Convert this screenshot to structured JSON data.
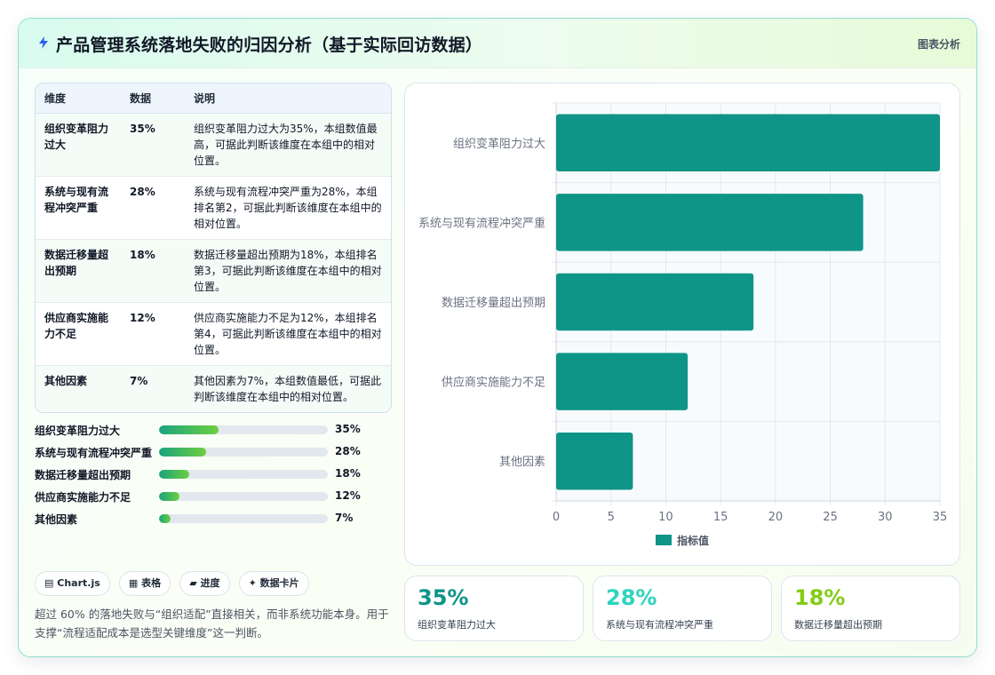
{
  "header": {
    "title": "产品管理系统落地失败的归因分析（基于实际回访数据）",
    "tag": "图表分析",
    "icon": "lightning-icon"
  },
  "table": {
    "columns": [
      "维度",
      "数据",
      "说明"
    ],
    "rows": [
      {
        "name": "组织变革阻力过大",
        "value": "35%",
        "desc": "组织变革阻力过大为35%，本组数值最高，可据此判断该维度在本组中的相对位置。"
      },
      {
        "name": "系统与现有流程冲突严重",
        "value": "28%",
        "desc": "系统与现有流程冲突严重为28%，本组排名第2，可据此判断该维度在本组中的相对位置。"
      },
      {
        "name": "数据迁移量超出预期",
        "value": "18%",
        "desc": "数据迁移量超出预期为18%，本组排名第3，可据此判断该维度在本组中的相对位置。"
      },
      {
        "name": "供应商实施能力不足",
        "value": "12%",
        "desc": "供应商实施能力不足为12%，本组排名第4，可据此判断该维度在本组中的相对位置。"
      },
      {
        "name": "其他因素",
        "value": "7%",
        "desc": "其他因素为7%，本组数值最低，可据此判断该维度在本组中的相对位置。"
      }
    ]
  },
  "progress": [
    {
      "label": "组织变革阻力过大",
      "value": 35,
      "display": "35%"
    },
    {
      "label": "系统与现有流程冲突严重",
      "value": 28,
      "display": "28%"
    },
    {
      "label": "数据迁移量超出预期",
      "value": 18,
      "display": "18%"
    },
    {
      "label": "供应商实施能力不足",
      "value": 12,
      "display": "12%"
    },
    {
      "label": "其他因素",
      "value": 7,
      "display": "7%"
    }
  ],
  "chips": [
    {
      "label": "Chart.js",
      "icon": "chart-icon",
      "glyph": "▤"
    },
    {
      "label": "表格",
      "icon": "table-icon",
      "glyph": "▦"
    },
    {
      "label": "进度",
      "icon": "progress-icon",
      "glyph": "▰"
    },
    {
      "label": "数据卡片",
      "icon": "sparkle-icon",
      "glyph": "✦"
    }
  ],
  "note": "超过 60% 的落地失败与“组织适配”直接相关，而非系统功能本身。用于支撑“流程适配成本是选型关键维度”这一判断。",
  "chart_data": {
    "type": "bar",
    "orientation": "horizontal",
    "categories": [
      "组织变革阻力过大",
      "系统与现有流程冲突严重",
      "数据迁移量超出预期",
      "供应商实施能力不足",
      "其他因素"
    ],
    "series": [
      {
        "name": "指标值",
        "values": [
          35,
          28,
          18,
          12,
          7
        ]
      }
    ],
    "xlim": [
      0,
      35
    ],
    "xticks": [
      0,
      5,
      10,
      15,
      20,
      25,
      30,
      35
    ],
    "grid": true,
    "legend": "bottom",
    "bar_color": "#0f9488"
  },
  "stats": [
    {
      "value": "35%",
      "label": "组织变革阻力过大",
      "color": "#0f9488"
    },
    {
      "value": "28%",
      "label": "系统与现有流程冲突严重",
      "color": "#2dd4bf"
    },
    {
      "value": "18%",
      "label": "数据迁移量超出预期",
      "color": "#84cc16"
    }
  ]
}
